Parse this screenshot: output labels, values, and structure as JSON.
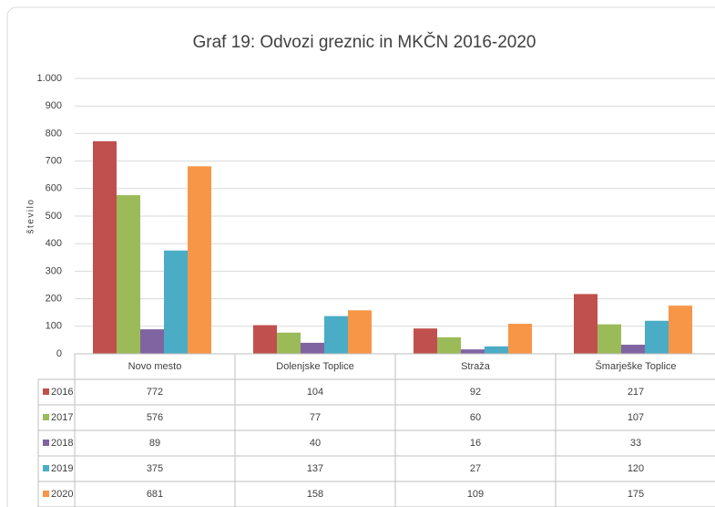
{
  "chart_data": {
    "type": "bar",
    "title": "Graf 19: Odvozi greznic in MKČN 2016-2020",
    "ylabel": "število",
    "categories": [
      "Novo mesto",
      "Dolenjske Toplice",
      "Straža",
      "Šmarješke Toplice"
    ],
    "series": [
      {
        "name": "2016",
        "color": "#c0504d",
        "values": [
          772,
          104,
          92,
          217
        ]
      },
      {
        "name": "2017",
        "color": "#9bbb59",
        "values": [
          576,
          77,
          60,
          107
        ]
      },
      {
        "name": "2018",
        "color": "#8064a2",
        "values": [
          89,
          40,
          16,
          33
        ]
      },
      {
        "name": "2019",
        "color": "#4bacc6",
        "values": [
          375,
          137,
          27,
          120
        ]
      },
      {
        "name": "2020",
        "color": "#f79646",
        "values": [
          681,
          158,
          109,
          175
        ]
      }
    ],
    "ylim": [
      0,
      1000
    ],
    "yticks": [
      0,
      100,
      200,
      300,
      400,
      500,
      600,
      700,
      800,
      900,
      {
        "value": 1000,
        "label": "1.000"
      }
    ],
    "grid": true
  }
}
